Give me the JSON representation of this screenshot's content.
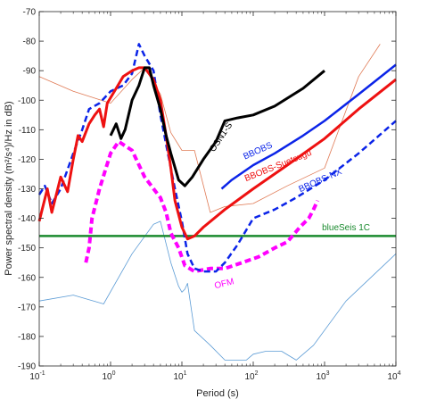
{
  "chart_data": {
    "type": "line",
    "title": "",
    "xlabel": "Period (s)",
    "ylabel": "Power spectral density (m²/s⁴)/Hz in dB)",
    "x_scale": "log",
    "xlim": [
      0.1,
      10000
    ],
    "ylim": [
      -190,
      -70
    ],
    "x_ticks": [
      {
        "value": 0.1,
        "base": "10",
        "exp": "-1"
      },
      {
        "value": 1,
        "base": "10",
        "exp": "0"
      },
      {
        "value": 10,
        "base": "10",
        "exp": "1"
      },
      {
        "value": 100,
        "base": "10",
        "exp": "2"
      },
      {
        "value": 1000,
        "base": "10",
        "exp": "3"
      },
      {
        "value": 10000,
        "base": "10",
        "exp": "4"
      }
    ],
    "y_ticks": [
      -190,
      -180,
      -170,
      -160,
      -150,
      -140,
      -130,
      -120,
      -110,
      -100,
      -90,
      -80,
      -70
    ],
    "grid": false,
    "series": [
      {
        "name": "",
        "color": "#5b9bd5",
        "width": 0.8,
        "dash": "",
        "points": [
          [
            0.1,
            -168
          ],
          [
            0.3,
            -166
          ],
          [
            0.8,
            -169
          ],
          [
            2,
            -152
          ],
          [
            4,
            -142
          ],
          [
            5,
            -141
          ],
          [
            7,
            -155
          ],
          [
            9,
            -163
          ],
          [
            10,
            -165
          ],
          [
            11,
            -164
          ],
          [
            12,
            -162
          ],
          [
            15,
            -178
          ],
          [
            25,
            -183
          ],
          [
            40,
            -188
          ],
          [
            80,
            -188
          ],
          [
            100,
            -186
          ],
          [
            150,
            -185
          ],
          [
            250,
            -185
          ],
          [
            400,
            -188
          ],
          [
            700,
            -183
          ],
          [
            2000,
            -168
          ],
          [
            10000,
            -152
          ]
        ]
      },
      {
        "name": "",
        "color": "#e07b56",
        "width": 0.8,
        "dash": "",
        "points": [
          [
            0.1,
            -92
          ],
          [
            0.3,
            -97
          ],
          [
            1,
            -101
          ],
          [
            2,
            -93
          ],
          [
            3,
            -89
          ],
          [
            5,
            -98
          ],
          [
            7,
            -111
          ],
          [
            10,
            -117
          ],
          [
            15,
            -117
          ],
          [
            25,
            -138
          ],
          [
            40,
            -136
          ],
          [
            100,
            -135
          ],
          [
            300,
            -129
          ],
          [
            1000,
            -123
          ],
          [
            3000,
            -92
          ],
          [
            6000,
            -81
          ]
        ]
      },
      {
        "name": "blueSeis 1C",
        "color": "#1a8a2e",
        "width": 2.5,
        "dash": "",
        "points": [
          [
            0.1,
            -146
          ],
          [
            10000,
            -146
          ]
        ]
      },
      {
        "name": "OFM",
        "color": "#ff00ff",
        "width": 4,
        "dash": "7,4",
        "points": [
          [
            0.45,
            -155
          ],
          [
            0.5,
            -150
          ],
          [
            0.55,
            -140
          ],
          [
            0.7,
            -130
          ],
          [
            1,
            -118
          ],
          [
            1.3,
            -114
          ],
          [
            2,
            -117
          ],
          [
            3,
            -126
          ],
          [
            4,
            -130
          ],
          [
            5,
            -133
          ],
          [
            6,
            -138
          ],
          [
            7,
            -145
          ],
          [
            9,
            -150
          ],
          [
            11,
            -156
          ],
          [
            15,
            -158
          ],
          [
            25,
            -157
          ],
          [
            40,
            -157
          ],
          [
            70,
            -155
          ],
          [
            120,
            -153
          ],
          [
            200,
            -150
          ],
          [
            300,
            -148
          ],
          [
            450,
            -143
          ],
          [
            600,
            -140
          ],
          [
            700,
            -137
          ],
          [
            800,
            -134
          ]
        ]
      },
      {
        "name": "BBOBS-NX",
        "color": "#0b24e8",
        "width": 2.5,
        "dash": "7,4",
        "points": [
          [
            0.1,
            -132
          ],
          [
            0.12,
            -129
          ],
          [
            0.15,
            -135
          ],
          [
            0.2,
            -130
          ],
          [
            0.3,
            -118
          ],
          [
            0.4,
            -110
          ],
          [
            0.5,
            -103
          ],
          [
            0.7,
            -101
          ],
          [
            1,
            -97
          ],
          [
            1.5,
            -95
          ],
          [
            2,
            -91
          ],
          [
            2.5,
            -81
          ],
          [
            3,
            -85
          ],
          [
            4,
            -90
          ],
          [
            5,
            -105
          ],
          [
            6,
            -115
          ],
          [
            8,
            -130
          ],
          [
            10,
            -141
          ],
          [
            12,
            -152
          ],
          [
            15,
            -157
          ],
          [
            20,
            -158
          ],
          [
            30,
            -158
          ],
          [
            40,
            -155
          ],
          [
            60,
            -149
          ],
          [
            100,
            -140
          ],
          [
            200,
            -137
          ],
          [
            400,
            -133
          ],
          [
            1000,
            -127
          ],
          [
            3000,
            -118
          ],
          [
            10000,
            -107
          ]
        ]
      },
      {
        "name": "BBOBS-Suetsugu",
        "color": "#ee1111",
        "width": 3,
        "dash": "",
        "points": [
          [
            0.1,
            -141
          ],
          [
            0.13,
            -130
          ],
          [
            0.15,
            -138
          ],
          [
            0.2,
            -126
          ],
          [
            0.25,
            -131
          ],
          [
            0.3,
            -120
          ],
          [
            0.35,
            -112
          ],
          [
            0.4,
            -114
          ],
          [
            0.5,
            -108
          ],
          [
            0.6,
            -105
          ],
          [
            0.7,
            -103
          ],
          [
            0.8,
            -109
          ],
          [
            0.9,
            -101
          ],
          [
            1.2,
            -96
          ],
          [
            1.5,
            -92
          ],
          [
            2,
            -90
          ],
          [
            2.5,
            -89
          ],
          [
            3,
            -89
          ],
          [
            4,
            -93
          ],
          [
            5,
            -100
          ],
          [
            6,
            -112
          ],
          [
            7,
            -123
          ],
          [
            8,
            -134
          ],
          [
            10,
            -143
          ],
          [
            12,
            -147
          ],
          [
            15,
            -146
          ],
          [
            20,
            -143
          ],
          [
            40,
            -137
          ],
          [
            100,
            -130
          ],
          [
            300,
            -122
          ],
          [
            1000,
            -113
          ],
          [
            3000,
            -103
          ],
          [
            10000,
            -93
          ]
        ]
      },
      {
        "name": "BBOBS",
        "color": "#0b24e8",
        "width": 2.5,
        "dash": "",
        "points": [
          [
            36,
            -130
          ],
          [
            50,
            -127
          ],
          [
            100,
            -122
          ],
          [
            200,
            -118
          ],
          [
            500,
            -112
          ],
          [
            1000,
            -107
          ],
          [
            3000,
            -98
          ],
          [
            10000,
            -88
          ]
        ]
      },
      {
        "name": "OSN1-S",
        "color": "#000000",
        "width": 3,
        "dash": "",
        "points": [
          [
            1,
            -112
          ],
          [
            1.2,
            -108
          ],
          [
            1.4,
            -113
          ],
          [
            1.6,
            -110
          ],
          [
            2,
            -100
          ],
          [
            2.5,
            -95
          ],
          [
            3,
            -89
          ],
          [
            3.5,
            -89
          ],
          [
            4,
            -95
          ],
          [
            5,
            -103
          ],
          [
            6,
            -112
          ],
          [
            7,
            -118
          ],
          [
            9,
            -127
          ],
          [
            11,
            -129
          ],
          [
            14,
            -126
          ],
          [
            20,
            -120
          ],
          [
            30,
            -114
          ],
          [
            40,
            -107
          ],
          [
            60,
            -106
          ],
          [
            100,
            -105
          ],
          [
            200,
            -102
          ],
          [
            500,
            -96
          ],
          [
            1000,
            -90
          ]
        ]
      }
    ],
    "annotations": [
      {
        "text": "OSN1-S",
        "x": 38,
        "y": -113,
        "rotate": -56,
        "color": "#000000"
      },
      {
        "text": "BBOBS",
        "x": 120,
        "y": -118,
        "rotate": -24,
        "color": "#0b24e8"
      },
      {
        "text": "BBOBS-Suetsugu",
        "x": 230,
        "y": -123,
        "rotate": -22,
        "color": "#ee1111"
      },
      {
        "text": "BBOBS-NX",
        "x": 900,
        "y": -128,
        "rotate": -24,
        "color": "#0b24e8"
      },
      {
        "text": "blueSeis 1C",
        "x": 2000,
        "y": -144,
        "rotate": 0,
        "color": "#1a8a2e"
      },
      {
        "text": "OFM",
        "x": 40,
        "y": -163,
        "rotate": -14,
        "color": "#ff00ff"
      }
    ]
  }
}
